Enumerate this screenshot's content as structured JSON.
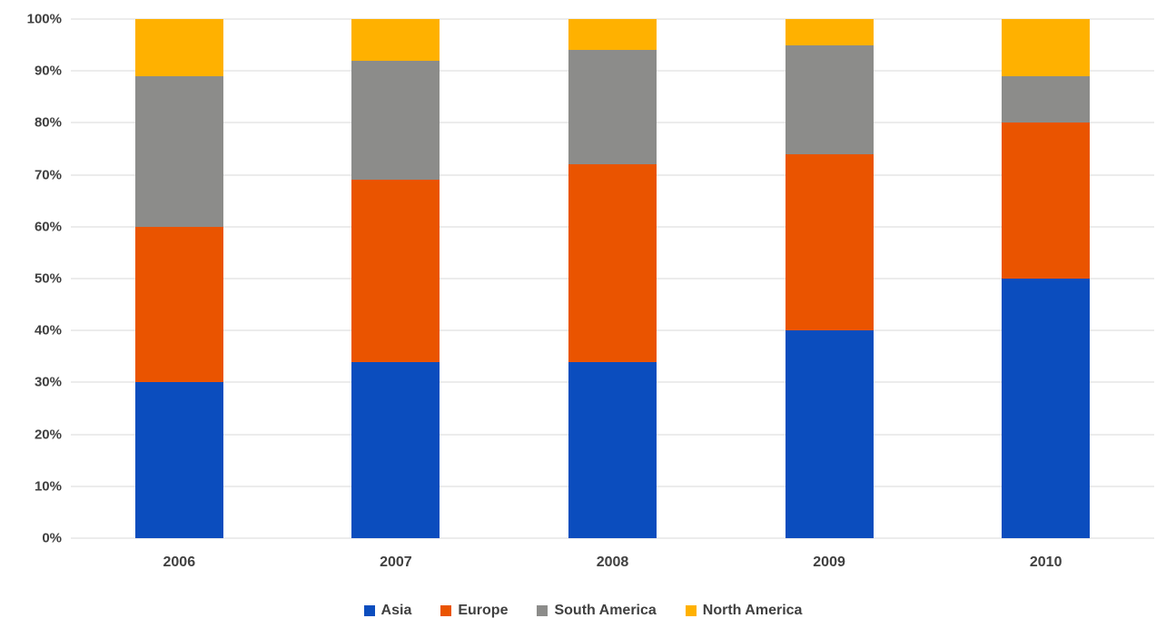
{
  "chart_data": {
    "type": "bar",
    "stacked": true,
    "stacked_mode": "percent",
    "title": "",
    "xlabel": "",
    "ylabel": "",
    "categories": [
      "2006",
      "2007",
      "2008",
      "2009",
      "2010"
    ],
    "series": [
      {
        "name": "Asia",
        "color": "#0B4DBE",
        "values": [
          30,
          34,
          34,
          40,
          50
        ]
      },
      {
        "name": "Europe",
        "color": "#EA5400",
        "values": [
          30,
          35,
          38,
          34,
          30
        ]
      },
      {
        "name": "South America",
        "color": "#8C8C8A",
        "values": [
          29,
          23,
          22,
          21,
          9
        ]
      },
      {
        "name": "North America",
        "color": "#FFB100",
        "values": [
          11,
          8,
          6,
          5,
          11
        ]
      }
    ],
    "ylim": [
      0,
      100
    ],
    "y_tick_values": [
      0,
      10,
      20,
      30,
      40,
      50,
      60,
      70,
      80,
      90,
      100
    ],
    "y_tick_labels": [
      "0%",
      "10%",
      "20%",
      "30%",
      "40%",
      "50%",
      "60%",
      "70%",
      "80%",
      "90%",
      "100%"
    ],
    "grid": true,
    "legend_position": "bottom"
  },
  "colors": {
    "background": "#FFFFFF",
    "gridline": "#D9D9D9",
    "tick_text": "#404040"
  }
}
